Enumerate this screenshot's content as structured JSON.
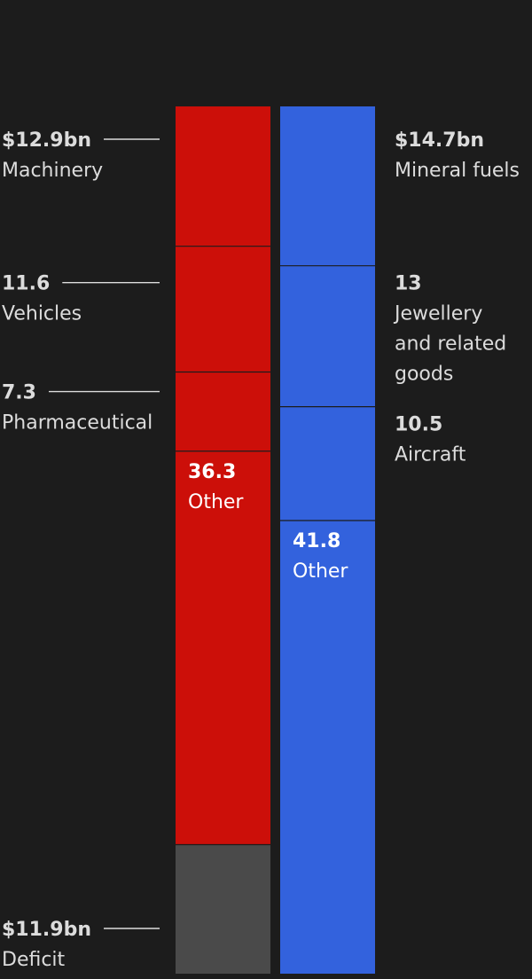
{
  "chart_data": {
    "type": "stacked-bar",
    "unit": "$bn",
    "colors": {
      "background": "#1c1c1c",
      "exports": "#cc0f09",
      "imports": "#3362dd",
      "deficit": "#4a4a4a",
      "text": "#dcdcdc",
      "inside_text": "#ffffff",
      "leader": "#dcdcdc",
      "divider": "#1c1c1c"
    },
    "series": [
      {
        "color_key": "exports",
        "segments": [
          {
            "id": "machinery",
            "value": 12.9,
            "value_label": "$12.9bn",
            "label_lines": [
              "Machinery"
            ],
            "label_side": "left"
          },
          {
            "id": "vehicles",
            "value": 11.6,
            "value_label": "11.6",
            "label_lines": [
              "Vehicles"
            ],
            "label_side": "left"
          },
          {
            "id": "pharmaceutical",
            "value": 7.3,
            "value_label": "7.3",
            "label_lines": [
              "Pharmaceutical"
            ],
            "label_side": "left"
          },
          {
            "id": "other",
            "value": 36.3,
            "value_label": "36.3",
            "label_lines": [
              "Other"
            ],
            "label_side": "inside"
          },
          {
            "id": "deficit",
            "value": 11.9,
            "value_label": "$11.9bn",
            "label_lines": [
              "Deficit"
            ],
            "label_side": "left-bottom",
            "color_key": "deficit"
          }
        ]
      },
      {
        "color_key": "imports",
        "segments": [
          {
            "id": "mineral-fuels",
            "value": 14.7,
            "value_label": "$14.7bn",
            "label_lines": [
              "Mineral fuels"
            ],
            "label_side": "right"
          },
          {
            "id": "jewellery",
            "value": 13,
            "value_label": "13",
            "label_lines": [
              "Jewellery",
              "and related",
              "goods"
            ],
            "label_side": "right"
          },
          {
            "id": "aircraft",
            "value": 10.5,
            "value_label": "10.5",
            "label_lines": [
              "Aircraft"
            ],
            "label_side": "right"
          },
          {
            "id": "other",
            "value": 41.8,
            "value_label": "41.8",
            "label_lines": [
              "Other"
            ],
            "label_side": "inside"
          }
        ]
      }
    ]
  }
}
